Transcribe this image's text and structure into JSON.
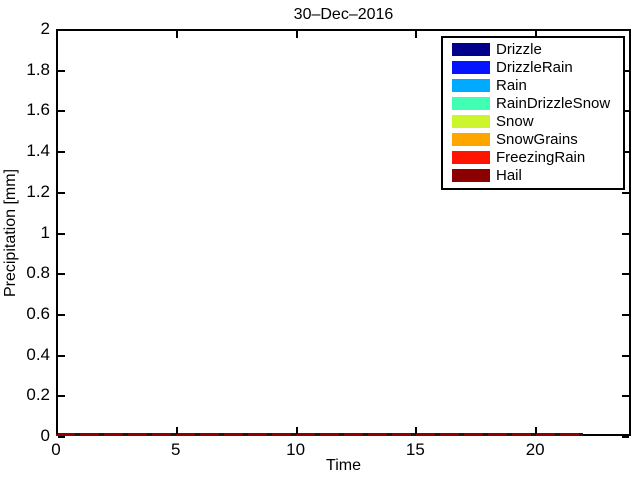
{
  "figure": {
    "title": "30–Dec–2016",
    "xlabel": "Time",
    "ylabel": "Precipitation [mm]"
  },
  "legend": {
    "items": [
      {
        "label": "Drizzle",
        "color": "#00008B"
      },
      {
        "label": "DrizzleRain",
        "color": "#0514FF"
      },
      {
        "label": "Rain",
        "color": "#00AAFF"
      },
      {
        "label": "RainDrizzleSnow",
        "color": "#40FFB3"
      },
      {
        "label": "Snow",
        "color": "#CCF52E"
      },
      {
        "label": "SnowGrains",
        "color": "#FFA500"
      },
      {
        "label": "FreezingRain",
        "color": "#FF1400"
      },
      {
        "label": "Hail",
        "color": "#8B0000"
      }
    ]
  },
  "chart_data": {
    "type": "line",
    "title": "30–Dec–2016",
    "xlabel": "Time",
    "ylabel": "Precipitation [mm]",
    "xlim": [
      0,
      24
    ],
    "ylim": [
      0,
      2
    ],
    "x_ticks": [
      0,
      5,
      10,
      15,
      20
    ],
    "y_ticks": [
      0,
      0.2,
      0.4,
      0.6,
      0.8,
      1,
      1.2,
      1.4,
      1.6,
      1.8,
      2
    ],
    "grid": false,
    "legend_position": "top-right",
    "x": [
      0,
      1,
      2,
      3,
      4,
      5,
      6,
      7,
      8,
      9,
      10,
      11,
      12,
      13,
      14,
      15,
      16,
      17,
      18,
      19,
      20,
      21,
      22
    ],
    "series": [
      {
        "name": "Drizzle",
        "color": "#00008B",
        "values": [
          0,
          0,
          0,
          0,
          0,
          0,
          0,
          0,
          0,
          0,
          0,
          0,
          0,
          0,
          0,
          0,
          0,
          0,
          0,
          0,
          0,
          0,
          0
        ]
      },
      {
        "name": "DrizzleRain",
        "color": "#0514FF",
        "values": [
          0,
          0,
          0,
          0,
          0,
          0,
          0,
          0,
          0,
          0,
          0,
          0,
          0,
          0,
          0,
          0,
          0,
          0,
          0,
          0,
          0,
          0,
          0
        ]
      },
      {
        "name": "Rain",
        "color": "#00AAFF",
        "values": [
          0,
          0,
          0,
          0,
          0,
          0,
          0,
          0,
          0,
          0,
          0,
          0,
          0,
          0,
          0,
          0,
          0,
          0,
          0,
          0,
          0,
          0,
          0
        ]
      },
      {
        "name": "RainDrizzleSnow",
        "color": "#40FFB3",
        "values": [
          0,
          0,
          0,
          0,
          0,
          0,
          0,
          0,
          0,
          0,
          0,
          0,
          0,
          0,
          0,
          0,
          0,
          0,
          0,
          0,
          0,
          0,
          0
        ]
      },
      {
        "name": "Snow",
        "color": "#CCF52E",
        "values": [
          0,
          0,
          0,
          0,
          0,
          0,
          0,
          0,
          0,
          0,
          0,
          0,
          0,
          0,
          0,
          0,
          0,
          0,
          0,
          0,
          0,
          0,
          0
        ]
      },
      {
        "name": "SnowGrains",
        "color": "#FFA500",
        "values": [
          0,
          0,
          0,
          0,
          0,
          0,
          0,
          0,
          0,
          0,
          0,
          0,
          0,
          0,
          0,
          0,
          0,
          0,
          0,
          0,
          0,
          0,
          0
        ]
      },
      {
        "name": "FreezingRain",
        "color": "#FF1400",
        "values": [
          0,
          0,
          0,
          0,
          0,
          0,
          0,
          0,
          0,
          0,
          0,
          0,
          0,
          0,
          0,
          0,
          0,
          0,
          0,
          0,
          0,
          0,
          0
        ]
      },
      {
        "name": "Hail",
        "color": "#8B0000",
        "values": [
          0,
          0,
          0,
          0,
          0,
          0,
          0,
          0,
          0,
          0,
          0,
          0,
          0,
          0,
          0,
          0,
          0,
          0,
          0,
          0,
          0,
          0,
          0
        ]
      }
    ],
    "visible_top_line": {
      "series": "Hail",
      "color": "#8B0000",
      "y": 0,
      "x_start": 0,
      "x_end": 22
    }
  }
}
